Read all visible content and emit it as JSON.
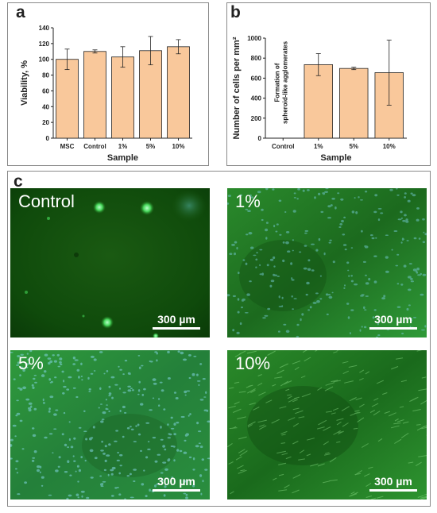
{
  "panels": {
    "a": "a",
    "b": "b",
    "c": "c"
  },
  "chart_data": [
    {
      "panel": "a",
      "type": "bar",
      "categories": [
        "MSC",
        "Control",
        "1%",
        "5%",
        "10%"
      ],
      "values": [
        100,
        110,
        103,
        111,
        116
      ],
      "errors": [
        13,
        2,
        13,
        18,
        9
      ],
      "xlabel": "Sample",
      "ylabel": "Viability, %",
      "ylim": [
        0,
        140
      ],
      "yticks": [
        0,
        20,
        40,
        60,
        80,
        100,
        120,
        140
      ],
      "bar_color": "#f9c89b",
      "grid": false
    },
    {
      "panel": "b",
      "type": "bar",
      "categories": [
        "Control",
        "1%",
        "5%",
        "10%"
      ],
      "values": [
        null,
        735,
        697,
        655
      ],
      "errors": [
        null,
        110,
        12,
        325
      ],
      "xlabel": "Sample",
      "ylabel": "Number of cells per mm²",
      "ylim": [
        0,
        1000
      ],
      "yticks": [
        0,
        200,
        400,
        600,
        800,
        1000
      ],
      "annotation": [
        "Formation of",
        "spheroid-like agglomerates"
      ],
      "bar_color": "#f9c89b",
      "grid": false
    }
  ],
  "images": [
    {
      "label": "Control",
      "scale": "300 µm"
    },
    {
      "label": "1%",
      "scale": "300 µm"
    },
    {
      "label": "5%",
      "scale": "300 µm"
    },
    {
      "label": "10%",
      "scale": "300 µm"
    }
  ]
}
